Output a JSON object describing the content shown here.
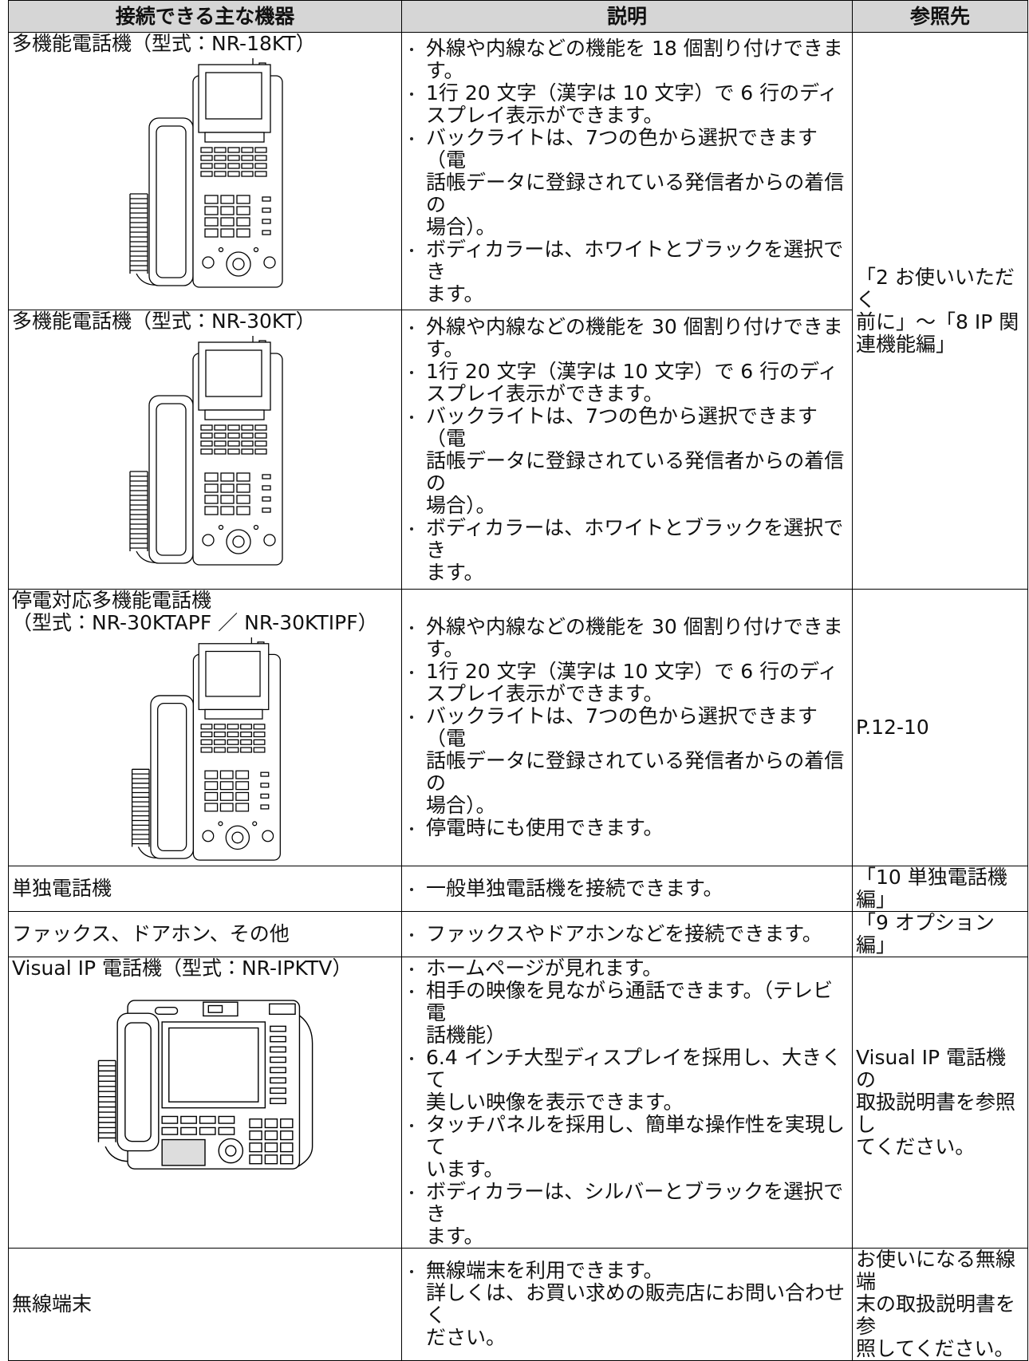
{
  "table": {
    "headers": [
      "接続できる主な機器",
      "説明",
      "参照先"
    ],
    "rows": [
      {
        "device": [
          "多機能電話機（型式：NR-18KT）"
        ],
        "description": [
          [
            "外線や内線などの機能を 18 個割り付けできま",
            "す。"
          ],
          [
            "1行 20 文字（漢字は 10 文字）で 6 行のディ",
            "スプレイ表示ができます。"
          ],
          [
            "バックライトは、7つの色から選択できます（電",
            "話帳データに登録されている発信者からの着信の",
            "場合）。"
          ],
          [
            "ボディカラーは、ホワイトとブラックを選択でき",
            "ます。"
          ]
        ],
        "reference": [
          "「2 お使いいただく",
          "前に」～「8 IP 関",
          "連機能編」"
        ]
      },
      {
        "device": [
          "多機能電話機（型式：NR-30KT）"
        ],
        "description": [
          [
            "外線や内線などの機能を 30 個割り付けできま",
            "す。"
          ],
          [
            "1行 20 文字（漢字は 10 文字）で 6 行のディ",
            "スプレイ表示ができます。"
          ],
          [
            "バックライトは、7つの色から選択できます（電",
            "話帳データに登録されている発信者からの着信の",
            "場合）。"
          ],
          [
            "ボディカラーは、ホワイトとブラックを選択でき",
            "ます。"
          ]
        ]
      },
      {
        "device": [
          "停電対応多機能電話機",
          "（型式：NR-30KTAPF ／ NR-30KTIPF）"
        ],
        "description": [
          [
            "外線や内線などの機能を 30 個割り付けできま",
            "す。"
          ],
          [
            "1行 20 文字（漢字は 10 文字）で 6 行のディ",
            "スプレイ表示ができます。"
          ],
          [
            "バックライトは、7つの色から選択できます（電",
            "話帳データに登録されている発信者からの着信の",
            "場合）。"
          ],
          [
            "停電時にも使用できます。"
          ]
        ],
        "reference": [
          "P.12-10"
        ]
      },
      {
        "device": [
          "単独電話機"
        ],
        "description": [
          [
            "一般単独電話機を接続できます。"
          ]
        ],
        "reference": [
          "「10 単独電話機編」"
        ]
      },
      {
        "device": [
          "ファックス、ドアホン、その他"
        ],
        "description": [
          [
            "ファックスやドアホンなどを接続できます。"
          ]
        ],
        "reference": [
          "「9 オプション編」"
        ]
      },
      {
        "device": [
          "Visual IP 電話機（型式：NR-IPKTV）"
        ],
        "description": [
          [
            "ホームページが見れます。"
          ],
          [
            "相手の映像を見ながら通話できます。（テレビ電",
            "話機能）"
          ],
          [
            "6.4 インチ大型ディスプレイを採用し、大きくて",
            "美しい映像を表示できます。"
          ],
          [
            "タッチパネルを採用し、簡単な操作性を実現して",
            "います。"
          ],
          [
            "ボディカラーは、シルバーとブラックを選択でき",
            "ます。"
          ]
        ],
        "reference": [
          "Visual IP 電話機の",
          "取扱説明書を参照し",
          "てください。"
        ]
      },
      {
        "device": [
          "無線端末"
        ],
        "description": [
          [
            "無線端末を利用できます。",
            "詳しくは、お買い求めの販売店にお問い合わせく",
            "ださい。"
          ]
        ],
        "reference": [
          "お使いになる無線端",
          "末の取扱説明書を参",
          "照してください。"
        ]
      }
    ]
  }
}
